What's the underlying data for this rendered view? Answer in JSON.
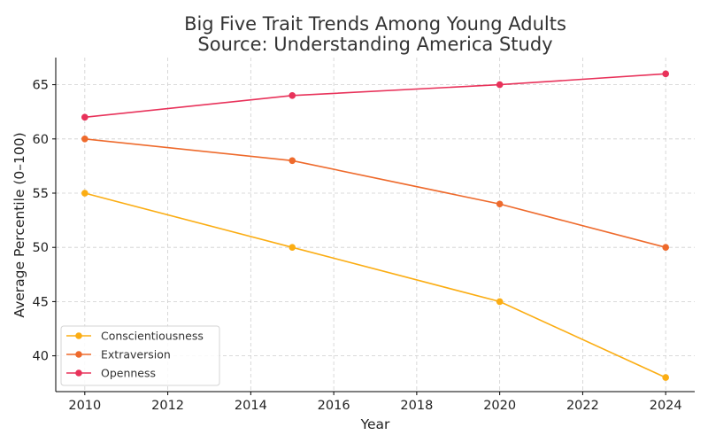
{
  "chart_data": {
    "type": "line",
    "title": [
      "Big Five Trait Trends Among Young Adults",
      "Source: Understanding America Study"
    ],
    "xlabel": "Year",
    "ylabel": "Average Percentile (0–100)",
    "xlim": [
      2009.3,
      2024.7
    ],
    "ylim": [
      36.7,
      67.5
    ],
    "xticks": [
      2010,
      2012,
      2014,
      2016,
      2018,
      2020,
      2022,
      2024
    ],
    "yticks": [
      40,
      45,
      50,
      55,
      60,
      65
    ],
    "grid": true,
    "legend_position": "lower-left",
    "x": [
      2010,
      2015,
      2020,
      2024
    ],
    "series": [
      {
        "name": "Conscientiousness",
        "color": "#fbad13",
        "values": [
          55,
          50,
          45,
          38
        ]
      },
      {
        "name": "Extraversion",
        "color": "#ee6a2c",
        "values": [
          60,
          58,
          54,
          50
        ]
      },
      {
        "name": "Openness",
        "color": "#e8325a",
        "values": [
          62,
          64,
          65,
          66
        ]
      }
    ]
  }
}
